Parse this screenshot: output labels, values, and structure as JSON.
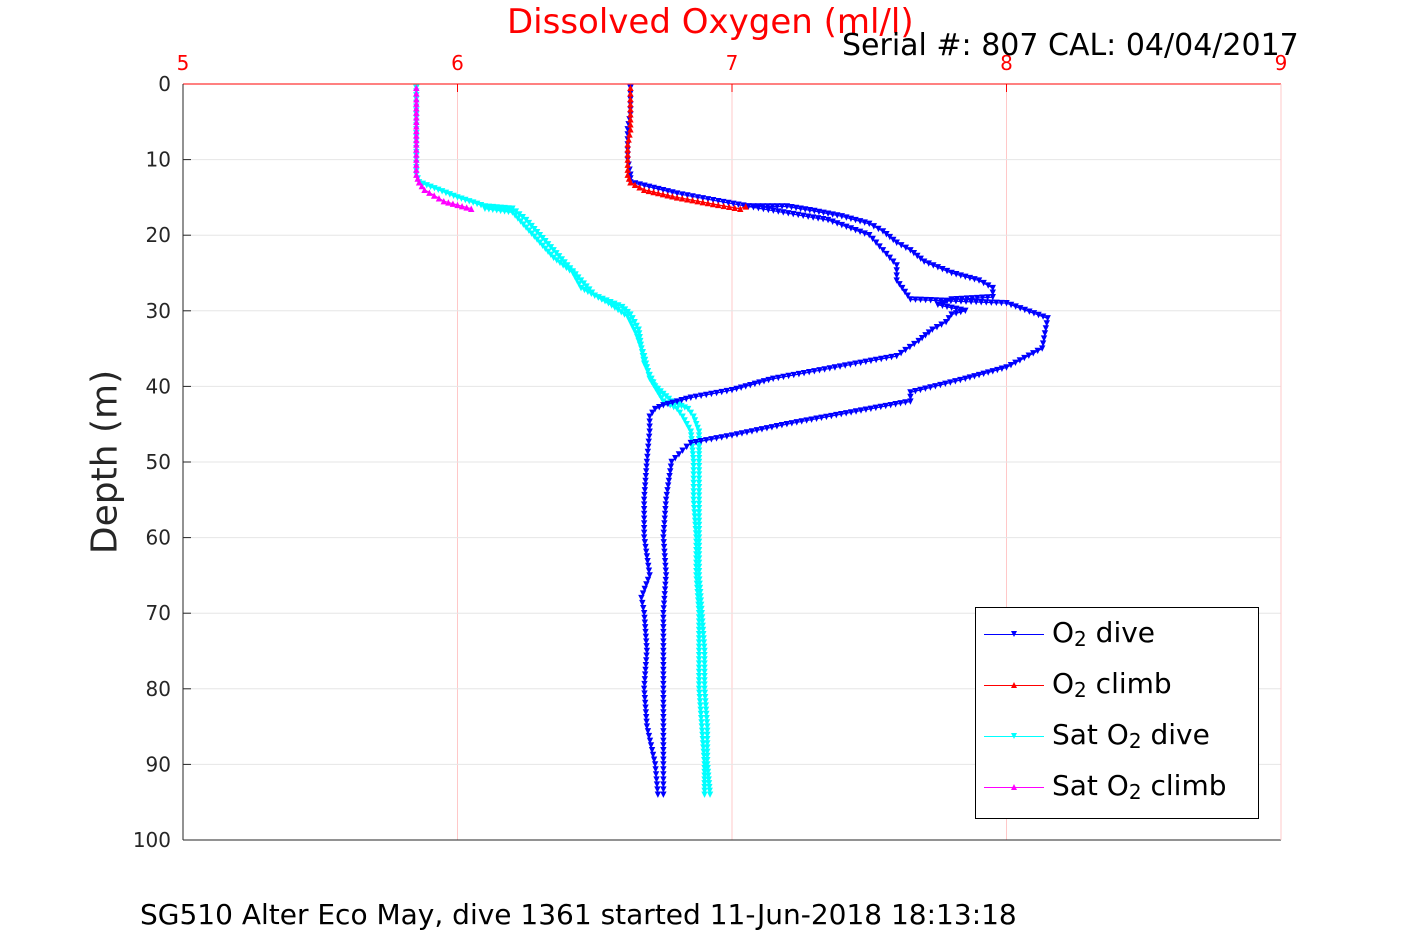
{
  "title": "Dissolved Oxygen (ml/l)",
  "serial_text": "Serial #: 807  CAL: 04/04/2017",
  "footer_text": "SG510 Alter Eco May, dive 1361 started 11-Jun-2018 18:13:18",
  "ylabel": "Depth (m)",
  "legend": [
    {
      "prefix": "O",
      "sub": "2",
      "suffix": " dive",
      "color": "#0000ff",
      "marker": "triangle-down"
    },
    {
      "prefix": "O",
      "sub": "2",
      "suffix": " climb",
      "color": "#ff0000",
      "marker": "triangle-up"
    },
    {
      "prefix": "Sat O",
      "sub": "2",
      "suffix": " dive",
      "color": "#00ffff",
      "marker": "triangle-down"
    },
    {
      "prefix": "Sat O",
      "sub": "2",
      "suffix": " climb",
      "color": "#ff00ff",
      "marker": "triangle-up"
    }
  ],
  "chart_data": {
    "type": "line",
    "xlim": [
      5,
      9
    ],
    "ylim": [
      0,
      100
    ],
    "y_reversed": true,
    "x_axis_position": "top",
    "x_ticks": [
      5,
      6,
      7,
      8,
      9
    ],
    "y_ticks": [
      0,
      10,
      20,
      30,
      40,
      50,
      60,
      70,
      80,
      90,
      100
    ],
    "x_tick_color": "#ff0000",
    "grid": true,
    "series": [
      {
        "name": "O2 dive",
        "color": "#0000ff",
        "marker": "triangle-down",
        "points": [
          [
            6.63,
            0.5
          ],
          [
            6.63,
            2
          ],
          [
            6.63,
            4
          ],
          [
            6.62,
            6
          ],
          [
            6.62,
            8
          ],
          [
            6.62,
            10
          ],
          [
            6.63,
            12
          ],
          [
            6.63,
            13
          ],
          [
            6.8,
            14.5
          ],
          [
            6.95,
            15.5
          ],
          [
            7.06,
            16.2
          ],
          [
            7.2,
            16.2
          ],
          [
            7.3,
            16.8
          ],
          [
            7.4,
            17.5
          ],
          [
            7.5,
            18.5
          ],
          [
            7.55,
            19.5
          ],
          [
            7.6,
            21
          ],
          [
            7.65,
            22
          ],
          [
            7.7,
            23.5
          ],
          [
            7.8,
            25
          ],
          [
            7.9,
            26
          ],
          [
            7.95,
            27
          ],
          [
            7.95,
            28.2
          ],
          [
            7.8,
            28.5
          ],
          [
            7.75,
            29.2
          ],
          [
            7.85,
            30
          ],
          [
            7.8,
            30.5
          ],
          [
            7.78,
            31.5
          ],
          [
            7.73,
            32.5
          ],
          [
            7.68,
            34
          ],
          [
            7.6,
            36
          ],
          [
            7.45,
            37
          ],
          [
            7.3,
            38
          ],
          [
            7.15,
            39
          ],
          [
            7.0,
            40.5
          ],
          [
            6.85,
            41.5
          ],
          [
            6.75,
            42.5
          ],
          [
            6.72,
            43
          ],
          [
            6.7,
            44
          ],
          [
            6.7,
            46
          ],
          [
            6.69,
            50
          ],
          [
            6.68,
            55
          ],
          [
            6.68,
            60
          ],
          [
            6.7,
            65
          ],
          [
            6.67,
            68
          ],
          [
            6.68,
            70
          ],
          [
            6.69,
            75
          ],
          [
            6.68,
            80
          ],
          [
            6.69,
            85
          ],
          [
            6.72,
            90
          ],
          [
            6.73,
            94
          ]
        ]
      },
      {
        "name": "O2 climb",
        "color": "#ff0000",
        "marker": "triangle-up",
        "points": [
          [
            6.63,
            0.5
          ],
          [
            6.63,
            2
          ],
          [
            6.63,
            4
          ],
          [
            6.63,
            6
          ],
          [
            6.62,
            8
          ],
          [
            6.62,
            10
          ],
          [
            6.62,
            12
          ],
          [
            6.63,
            13
          ],
          [
            6.68,
            14
          ],
          [
            6.8,
            15
          ],
          [
            6.95,
            16
          ],
          [
            7.03,
            16.5
          ],
          [
            7.05,
            16.2
          ]
        ]
      },
      {
        "name": "Sat O2 dive",
        "color": "#00ffff",
        "marker": "triangle-down",
        "points": [
          [
            5.85,
            0.5
          ],
          [
            5.85,
            2
          ],
          [
            5.85,
            5
          ],
          [
            5.85,
            8
          ],
          [
            5.85,
            10
          ],
          [
            5.85,
            12
          ],
          [
            5.86,
            13
          ],
          [
            6.0,
            15
          ],
          [
            6.1,
            16.2
          ],
          [
            6.2,
            16.5
          ],
          [
            6.25,
            18
          ],
          [
            6.3,
            20
          ],
          [
            6.35,
            22
          ],
          [
            6.4,
            24
          ],
          [
            6.45,
            26
          ],
          [
            6.5,
            28
          ],
          [
            6.6,
            29.5
          ],
          [
            6.63,
            30.5
          ],
          [
            6.66,
            32.5
          ],
          [
            6.67,
            35
          ],
          [
            6.68,
            37
          ],
          [
            6.72,
            40
          ],
          [
            6.78,
            42
          ],
          [
            6.84,
            43
          ],
          [
            6.86,
            44
          ],
          [
            6.88,
            46
          ],
          [
            6.88,
            50
          ],
          [
            6.88,
            55
          ],
          [
            6.88,
            60
          ],
          [
            6.88,
            65
          ],
          [
            6.89,
            70
          ],
          [
            6.9,
            75
          ],
          [
            6.9,
            80
          ],
          [
            6.91,
            85
          ],
          [
            6.91,
            90
          ],
          [
            6.92,
            94
          ]
        ]
      },
      {
        "name": "Sat O2 climb",
        "color": "#ff00ff",
        "marker": "triangle-up",
        "points": [
          [
            5.85,
            0.5
          ],
          [
            5.85,
            2
          ],
          [
            5.85,
            5
          ],
          [
            5.85,
            8
          ],
          [
            5.85,
            10
          ],
          [
            5.85,
            12
          ],
          [
            5.86,
            13
          ],
          [
            5.88,
            14
          ],
          [
            5.95,
            15.5
          ],
          [
            6.05,
            16.5
          ]
        ]
      }
    ],
    "extra_dive_branch": {
      "series": "O2 dive",
      "points": [
        [
          7.06,
          16.2
        ],
        [
          7.35,
          18
        ],
        [
          7.5,
          20
        ],
        [
          7.55,
          22
        ],
        [
          7.6,
          24
        ],
        [
          7.6,
          26
        ],
        [
          7.65,
          28.5
        ],
        [
          8.0,
          29
        ],
        [
          8.15,
          31
        ],
        [
          8.14,
          33
        ],
        [
          8.13,
          35
        ],
        [
          8.0,
          37.5
        ],
        [
          7.85,
          39
        ],
        [
          7.65,
          40.8
        ],
        [
          7.65,
          42
        ],
        [
          7.2,
          45
        ],
        [
          7.0,
          46.5
        ],
        [
          6.85,
          47.5
        ],
        [
          6.82,
          48.5
        ],
        [
          6.78,
          50
        ],
        [
          6.76,
          55
        ],
        [
          6.75,
          60
        ],
        [
          6.76,
          65
        ],
        [
          6.75,
          70
        ],
        [
          6.75,
          75
        ],
        [
          6.75,
          80
        ],
        [
          6.75,
          85
        ],
        [
          6.75,
          90
        ],
        [
          6.75,
          94
        ]
      ]
    },
    "extra_sat_branch": {
      "series": "Sat O2 dive",
      "points": [
        [
          6.1,
          16.5
        ],
        [
          6.2,
          17
        ],
        [
          6.25,
          19
        ],
        [
          6.3,
          21
        ],
        [
          6.35,
          23
        ],
        [
          6.42,
          25
        ],
        [
          6.45,
          27
        ],
        [
          6.55,
          29
        ],
        [
          6.62,
          30.8
        ],
        [
          6.65,
          33
        ],
        [
          6.68,
          36
        ],
        [
          6.7,
          39
        ],
        [
          6.75,
          42
        ],
        [
          6.8,
          43
        ],
        [
          6.82,
          44
        ],
        [
          6.85,
          46
        ],
        [
          6.86,
          50
        ],
        [
          6.86,
          55
        ],
        [
          6.87,
          60
        ],
        [
          6.87,
          65
        ],
        [
          6.88,
          70
        ],
        [
          6.88,
          75
        ],
        [
          6.88,
          80
        ],
        [
          6.89,
          85
        ],
        [
          6.9,
          90
        ],
        [
          6.9,
          94
        ]
      ]
    }
  }
}
